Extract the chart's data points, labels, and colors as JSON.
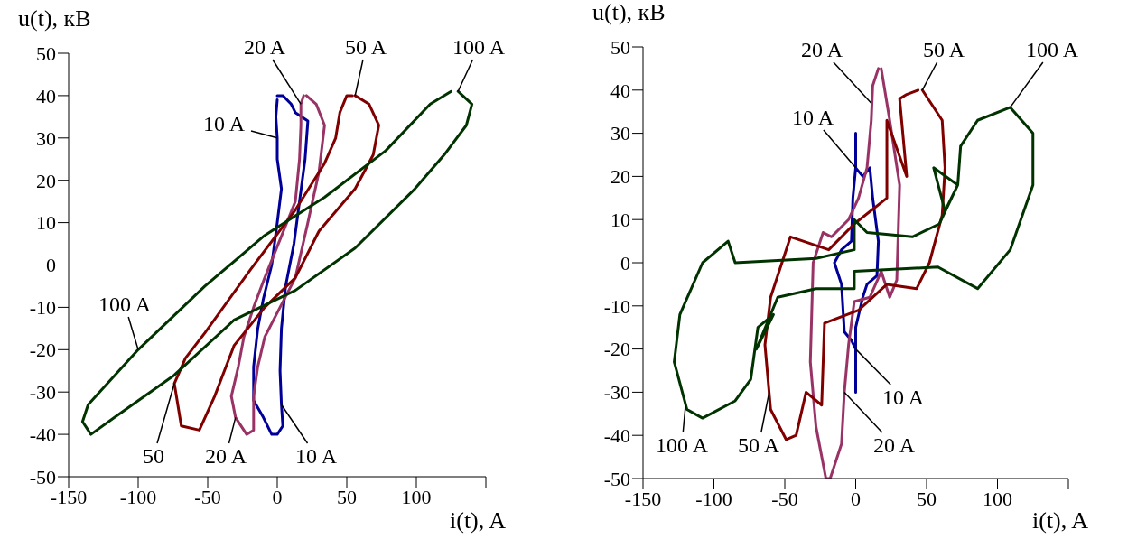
{
  "chart_data": [
    {
      "type": "line",
      "xlabel": "i(t), A",
      "ylabel": "u(t), кВ",
      "xlim": [
        -150,
        150
      ],
      "ylim": [
        -50,
        50
      ],
      "xticks": [
        -150,
        -100,
        -50,
        0,
        50,
        100,
        {
          "value": 150,
          "label": null
        }
      ],
      "yticks": [
        -50,
        -40,
        -30,
        -20,
        -10,
        0,
        10,
        20,
        30,
        40,
        50
      ],
      "series": [
        {
          "color": "#000099",
          "x": [
            0,
            4,
            10,
            13,
            22,
            20,
            16,
            12,
            6,
            3,
            2,
            3,
            4,
            0,
            -4,
            -10,
            -17,
            -17,
            -14,
            -10,
            -4,
            0,
            3,
            0,
            0,
            -1,
            0
          ],
          "values": [
            40,
            40,
            38,
            36,
            34,
            25,
            15,
            5,
            -5,
            -15,
            -25,
            -33,
            -38,
            -40,
            -40,
            -36,
            -32,
            -24,
            -15,
            -8,
            0,
            10,
            18,
            25,
            30,
            35,
            39
          ]
        },
        {
          "color": "#993366",
          "x": [
            21,
            28,
            34,
            30,
            22,
            13,
            2,
            -9,
            -14,
            -17,
            -17,
            -22,
            -30,
            -33,
            -28,
            -24,
            -17,
            -9,
            2,
            13,
            16,
            17,
            17,
            19
          ],
          "values": [
            40,
            38,
            33,
            22,
            10,
            -3,
            -10,
            -17,
            -24,
            -31,
            -39,
            -40,
            -36,
            -31,
            -24,
            -17,
            -10,
            -3,
            6,
            15,
            25,
            33,
            38,
            40
          ]
        },
        {
          "color": "#800000",
          "x": [
            56,
            66,
            73,
            69,
            56,
            30,
            13,
            -9,
            -31,
            -45,
            -56,
            -69,
            -74,
            -66,
            -52,
            -19,
            13,
            34,
            42,
            45,
            50,
            54
          ],
          "values": [
            40,
            38,
            33,
            26,
            18,
            8,
            -3,
            -10,
            -19,
            -31,
            -39,
            -38,
            -28,
            -22,
            -16,
            -1,
            13,
            24,
            30,
            36,
            40,
            40
          ]
        },
        {
          "color": "#003300",
          "x": [
            130,
            140,
            136,
            120,
            99,
            56,
            13,
            -31,
            -74,
            -117,
            -134,
            -140,
            -136,
            -100,
            -52,
            -9,
            34,
            78,
            110,
            125
          ],
          "values": [
            41,
            38,
            33,
            26,
            18,
            4,
            -6,
            -13,
            -26,
            -36,
            -40,
            -37,
            -33,
            -20,
            -5,
            7,
            16,
            27,
            38,
            41
          ]
        }
      ],
      "annotations": [
        {
          "text": "20 A",
          "x": 17,
          "y": 38
        },
        {
          "text": "50 A",
          "x": 56,
          "y": 40
        },
        {
          "text": "100 A",
          "x": 130,
          "y": 41
        },
        {
          "text": "10 A",
          "x": 0,
          "y": 30
        },
        {
          "text": "100 A",
          "x": -100,
          "y": -20
        },
        {
          "text": "50",
          "x": -74,
          "y": -28
        },
        {
          "text": "20 A",
          "x": -30,
          "y": -36
        },
        {
          "text": "10 A",
          "x": 3,
          "y": -33
        }
      ]
    },
    {
      "type": "line",
      "xlabel": "i(t), A",
      "ylabel": "u(t), кВ",
      "xlim": [
        -150,
        150
      ],
      "ylim": [
        -50,
        50
      ],
      "xticks": [
        -150,
        -100,
        -50,
        0,
        50,
        100,
        {
          "value": 150,
          "label": null
        }
      ],
      "yticks": [
        -50,
        -40,
        -30,
        -20,
        -10,
        0,
        10,
        20,
        30,
        40,
        50
      ],
      "series": [
        {
          "color": "#000099",
          "x": [
            0,
            0,
            5,
            10,
            12,
            16,
            15,
            8,
            5,
            0,
            0,
            0,
            -3,
            -8,
            -10,
            -15,
            -10,
            -3,
            -2,
            0
          ],
          "values": [
            30,
            22,
            20,
            22,
            15,
            5,
            -3,
            -5,
            -8,
            -15,
            -30,
            -20,
            -18,
            -16,
            -5,
            0,
            3,
            5,
            15,
            22
          ]
        },
        {
          "color": "#993366",
          "x": [
            18,
            20,
            24,
            31,
            29,
            24,
            18,
            10,
            -1,
            -5,
            -8,
            -10,
            -18,
            -21,
            -28,
            -32,
            -30,
            -23,
            -17,
            -5,
            2,
            8,
            11,
            12,
            16
          ],
          "values": [
            45,
            41,
            33,
            18,
            -4,
            -8,
            -2,
            -8,
            -9,
            -19,
            -30,
            -42,
            -50,
            -50,
            -38,
            -23,
            0,
            7,
            6,
            10,
            15,
            22,
            33,
            41,
            45
          ]
        },
        {
          "color": "#800000",
          "x": [
            47,
            61,
            63,
            61,
            52,
            43,
            22,
            2,
            -22,
            -24,
            -35,
            -42,
            -49,
            -60,
            -64,
            -60,
            -46,
            -19,
            -1,
            22,
            22,
            36,
            31,
            36,
            44
          ],
          "values": [
            40,
            33,
            22,
            11,
            0,
            -6,
            -5,
            -11,
            -14,
            -33,
            -30,
            -40,
            -41,
            -34,
            -19,
            -8,
            6,
            3,
            9,
            15,
            33,
            20,
            38,
            39,
            40
          ]
        },
        {
          "color": "#003300",
          "x": [
            -1,
            58,
            86,
            109,
            125,
            125,
            109,
            86,
            74,
            72,
            63,
            55,
            72,
            59,
            40,
            8,
            -1,
            -1,
            -28,
            -85,
            -90,
            -108,
            -124,
            -128,
            -119,
            -108,
            -85,
            -74,
            -69,
            -58,
            -70,
            -55,
            -28,
            -1,
            -1,
            58
          ],
          "values": [
            -2,
            -1,
            -6,
            3,
            18,
            30,
            36,
            33,
            27,
            18,
            12,
            22,
            18,
            9,
            6,
            7,
            10,
            3,
            1,
            0,
            5,
            0,
            -12,
            -23,
            -34,
            -36,
            -32,
            -27,
            -15,
            -12,
            -20,
            -8,
            -6,
            -6,
            -2,
            -1
          ]
        }
      ],
      "annotations": [
        {
          "text": "20 A",
          "x": 11,
          "y": 37
        },
        {
          "text": "50 A",
          "x": 47,
          "y": 40
        },
        {
          "text": "100 A",
          "x": 109,
          "y": 36
        },
        {
          "text": "10 A",
          "x": 0,
          "y": 22
        },
        {
          "text": "10 A",
          "x": 0,
          "y": -20
        },
        {
          "text": "20 A",
          "x": -8,
          "y": -30
        },
        {
          "text": "50 A",
          "x": -61,
          "y": -30
        },
        {
          "text": "100 A",
          "x": -120,
          "y": -33
        }
      ]
    }
  ]
}
